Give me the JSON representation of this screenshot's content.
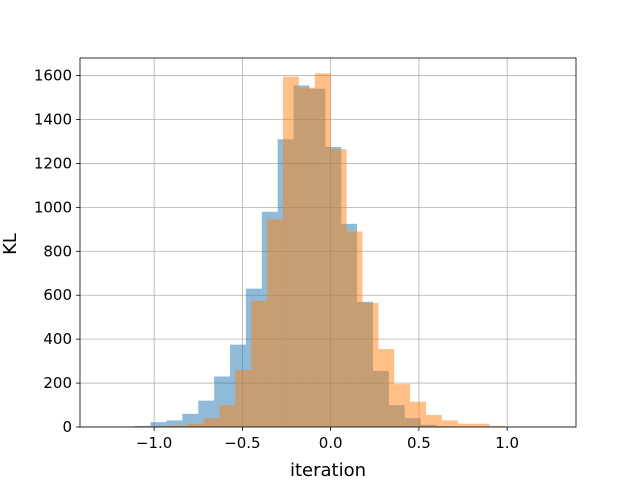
{
  "chart_data": {
    "type": "bar",
    "title": "",
    "xlabel": "iteration",
    "ylabel": "KL",
    "xlim": [
      -1.42,
      1.39
    ],
    "ylim": [
      0,
      1680
    ],
    "xticks": [
      -1.0,
      -0.5,
      0.0,
      0.5,
      1.0
    ],
    "xtick_labels": [
      "−1.0",
      "−0.5",
      "0.0",
      "0.5",
      "1.0"
    ],
    "yticks": [
      0,
      200,
      400,
      600,
      800,
      1000,
      1200,
      1400,
      1600
    ],
    "ytick_labels": [
      "0",
      "200",
      "400",
      "600",
      "800",
      "1000",
      "1200",
      "1400",
      "1600"
    ],
    "grid": true,
    "legend": "none",
    "series": [
      {
        "color": "#1f77b4",
        "opacity": 0.5,
        "bin_edges": [
          -1.29,
          -1.2,
          -1.11,
          -1.02,
          -0.93,
          -0.84,
          -0.75,
          -0.66,
          -0.57,
          -0.48,
          -0.39,
          -0.3,
          -0.21,
          -0.12,
          -0.03,
          0.06,
          0.15,
          0.24,
          0.33,
          0.42,
          0.51,
          0.6,
          0.69,
          0.78
        ],
        "counts": [
          1,
          2,
          5,
          22,
          30,
          60,
          120,
          230,
          375,
          630,
          980,
          1310,
          1555,
          1540,
          1275,
          925,
          570,
          255,
          100,
          40,
          10,
          3,
          1
        ]
      },
      {
        "color": "#ff7f0e",
        "opacity": 0.5,
        "bin_edges": [
          -1.26,
          -1.17,
          -1.08,
          -0.99,
          -0.9,
          -0.81,
          -0.72,
          -0.63,
          -0.54,
          -0.45,
          -0.36,
          -0.27,
          -0.18,
          -0.09,
          0.0,
          0.09,
          0.18,
          0.27,
          0.36,
          0.45,
          0.54,
          0.63,
          0.72,
          0.81,
          0.9,
          0.99,
          1.08,
          1.17
        ],
        "counts": [
          1,
          1,
          2,
          4,
          8,
          15,
          40,
          100,
          260,
          575,
          945,
          1595,
          1545,
          1610,
          1265,
          890,
          565,
          355,
          195,
          115,
          55,
          30,
          15,
          15,
          5,
          2,
          1
        ]
      }
    ]
  }
}
